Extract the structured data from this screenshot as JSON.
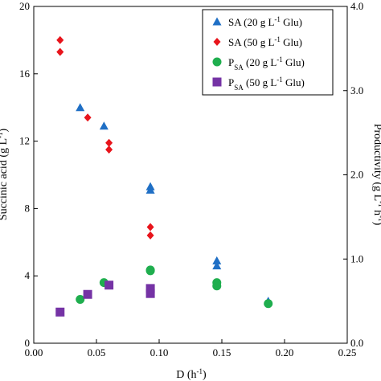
{
  "chart_data": {
    "type": "scatter",
    "xlabel": "D (h",
    "xlabel_sup": "-1",
    "xlabel_tail": ")",
    "ylabel": "Succinic acid (g L",
    "ylabel_sup": "-1",
    "ylabel_tail": ")",
    "y2label": "Productivity (g L",
    "y2label_sup": "-1",
    "y2label_mid": " h",
    "y2label_sup2": "-1",
    "y2label_tail": ")",
    "xlim": [
      0,
      0.25
    ],
    "ylim": [
      0,
      20
    ],
    "y2lim": [
      0,
      4.0
    ],
    "x_ticks": [
      "0.00",
      "0.05",
      "0.10",
      "0.15",
      "0.20",
      "0.25"
    ],
    "y_ticks": [
      "0",
      "4",
      "8",
      "12",
      "16",
      "20"
    ],
    "y2_ticks": [
      "0.0",
      "1.0",
      "2.0",
      "3.0",
      "4.0"
    ],
    "legend_position": "top-right",
    "series": [
      {
        "name": "SA  (20 g L-1 Glu)",
        "legend_main": "SA  (20 g L",
        "legend_sup": "-1",
        "legend_tail": " Glu)",
        "marker": "triangle",
        "color": "#1f6fc5",
        "axis": "left",
        "points": [
          {
            "x": 0.037,
            "y": 14.0
          },
          {
            "x": 0.056,
            "y": 12.9
          },
          {
            "x": 0.093,
            "y": 9.3
          },
          {
            "x": 0.093,
            "y": 9.1
          },
          {
            "x": 0.146,
            "y": 4.9
          },
          {
            "x": 0.146,
            "y": 4.6
          },
          {
            "x": 0.187,
            "y": 2.5
          }
        ]
      },
      {
        "name": "SA  (50 g L-1 Glu)",
        "legend_main": "SA  (50 g L",
        "legend_sup": "-1",
        "legend_tail": " Glu)",
        "marker": "diamond",
        "color": "#e8141b",
        "axis": "left",
        "points": [
          {
            "x": 0.021,
            "y": 18.0
          },
          {
            "x": 0.021,
            "y": 17.3
          },
          {
            "x": 0.043,
            "y": 13.4
          },
          {
            "x": 0.06,
            "y": 11.9
          },
          {
            "x": 0.06,
            "y": 11.5
          },
          {
            "x": 0.093,
            "y": 6.9
          },
          {
            "x": 0.093,
            "y": 6.4
          }
        ]
      },
      {
        "name": "PSA (20 g L-1 Glu)",
        "legend_main": "P",
        "legend_sub": "SA",
        "legend_rest": " (20 g L",
        "legend_sup": "-1",
        "legend_tail": " Glu)",
        "marker": "circle",
        "color": "#1fae4e",
        "axis": "right",
        "points": [
          {
            "x": 0.037,
            "y": 0.52
          },
          {
            "x": 0.056,
            "y": 0.72
          },
          {
            "x": 0.093,
            "y": 0.87
          },
          {
            "x": 0.093,
            "y": 0.86
          },
          {
            "x": 0.146,
            "y": 0.72
          },
          {
            "x": 0.146,
            "y": 0.68
          },
          {
            "x": 0.187,
            "y": 0.47
          }
        ]
      },
      {
        "name": "PSA (50 g L-1 Glu)",
        "legend_main": "P",
        "legend_sub": "SA",
        "legend_rest": " (50 g L",
        "legend_sup": "-1",
        "legend_tail": " Glu)",
        "marker": "square",
        "color": "#7533a5",
        "axis": "right",
        "points": [
          {
            "x": 0.021,
            "y": 0.37
          },
          {
            "x": 0.043,
            "y": 0.58
          },
          {
            "x": 0.06,
            "y": 0.69
          },
          {
            "x": 0.093,
            "y": 0.65
          },
          {
            "x": 0.093,
            "y": 0.59
          }
        ]
      }
    ]
  }
}
